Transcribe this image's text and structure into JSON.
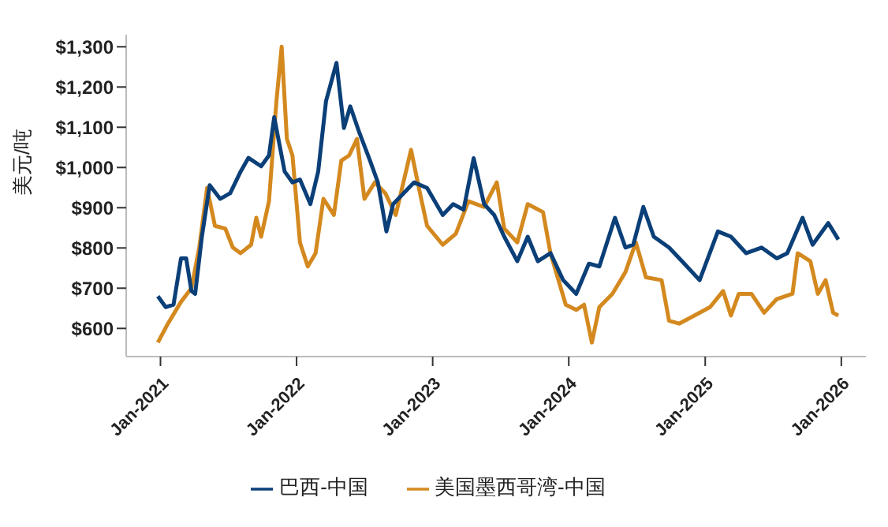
{
  "chart_data": {
    "type": "line",
    "ylabel": "美元/吨",
    "legend": "bottom",
    "grid": false,
    "marker": "none",
    "line_style": "solid",
    "xlim": [
      "2020-10-01",
      "2026-03-08"
    ],
    "xticks": [
      {
        "value": "2021-01-01",
        "label": "Jan-2021"
      },
      {
        "value": "2022-01-01",
        "label": "Jan-2022"
      },
      {
        "value": "2023-01-01",
        "label": "Jan-2023"
      },
      {
        "value": "2024-01-01",
        "label": "Jan-2024"
      },
      {
        "value": "2025-01-01",
        "label": "Jan-2025"
      },
      {
        "value": "2026-01-01",
        "label": "Jan-2026"
      }
    ],
    "ylim": [
      530,
      1330
    ],
    "yticks": [
      {
        "value": 600,
        "label": "$600"
      },
      {
        "value": 700,
        "label": "$700"
      },
      {
        "value": 800,
        "label": "$800"
      },
      {
        "value": 900,
        "label": "$900"
      },
      {
        "value": 1000,
        "label": "$1,000"
      },
      {
        "value": 1100,
        "label": "$1,100"
      },
      {
        "value": 1200,
        "label": "$1,200"
      },
      {
        "value": 1300,
        "label": "$1,300"
      }
    ],
    "series": [
      {
        "name": "美国墨西哥湾-中国",
        "color": "#d4891f",
        "x": [
          "2020-12-25",
          "2021-01-21",
          "2021-02-25",
          "2021-03-25",
          "2021-04-15",
          "2021-05-06",
          "2021-05-27",
          "2021-06-24",
          "2021-07-14",
          "2021-08-04",
          "2021-09-01",
          "2021-09-15",
          "2021-09-28",
          "2021-10-19",
          "2021-11-08",
          "2021-11-22",
          "2021-12-06",
          "2021-12-21",
          "2022-01-10",
          "2022-01-31",
          "2022-02-21",
          "2022-03-14",
          "2022-04-11",
          "2022-05-01",
          "2022-05-22",
          "2022-06-12",
          "2022-07-02",
          "2022-07-30",
          "2022-08-27",
          "2022-09-24",
          "2022-11-04",
          "2022-11-25",
          "2022-12-17",
          "2023-01-28",
          "2023-03-04",
          "2023-04-07",
          "2023-05-19",
          "2023-06-22",
          "2023-07-12",
          "2023-08-16",
          "2023-09-13",
          "2023-10-24",
          "2023-11-13",
          "2023-12-24",
          "2024-01-21",
          "2024-02-11",
          "2024-03-03",
          "2024-03-23",
          "2024-04-27",
          "2024-06-01",
          "2024-06-29",
          "2024-07-26",
          "2024-09-06",
          "2024-09-26",
          "2024-10-23",
          "2024-12-03",
          "2025-01-14",
          "2025-02-18",
          "2025-03-11",
          "2025-04-01",
          "2025-05-05",
          "2025-06-08",
          "2025-07-12",
          "2025-08-23",
          "2025-09-06",
          "2025-10-10",
          "2025-10-30",
          "2025-11-20",
          "2025-12-10",
          "2025-12-24"
        ],
        "values": [
          565,
          612,
          666,
          700,
          801,
          949,
          855,
          848,
          801,
          787,
          808,
          875,
          828,
          916,
          1165,
          1300,
          1071,
          1030,
          814,
          754,
          787,
          922,
          882,
          1017,
          1030,
          1071,
          922,
          963,
          936,
          882,
          1044,
          949,
          855,
          808,
          835,
          916,
          902,
          963,
          848,
          814,
          909,
          889,
          787,
          659,
          646,
          659,
          565,
          653,
          686,
          740,
          814,
          727,
          720,
          619,
          612,
          632,
          653,
          693,
          632,
          686,
          686,
          639,
          673,
          686,
          787,
          767,
          686,
          720,
          639,
          632
        ]
      },
      {
        "name": "巴西-中国",
        "color": "#0b3f78",
        "x": [
          "2020-12-25",
          "2021-01-15",
          "2021-02-05",
          "2021-02-25",
          "2021-03-11",
          "2021-03-25",
          "2021-04-04",
          "2021-04-22",
          "2021-05-13",
          "2021-06-10",
          "2021-07-07",
          "2021-08-04",
          "2021-08-25",
          "2021-09-28",
          "2021-10-19",
          "2021-11-02",
          "2021-11-30",
          "2021-12-21",
          "2022-01-10",
          "2022-02-07",
          "2022-02-28",
          "2022-03-21",
          "2022-04-18",
          "2022-05-08",
          "2022-05-25",
          "2022-06-19",
          "2022-07-17",
          "2022-08-07",
          "2022-08-30",
          "2022-09-17",
          "2022-10-15",
          "2022-11-12",
          "2022-12-17",
          "2023-01-28",
          "2023-02-25",
          "2023-03-25",
          "2023-04-21",
          "2023-05-19",
          "2023-06-15",
          "2023-07-12",
          "2023-08-16",
          "2023-09-13",
          "2023-10-10",
          "2023-11-13",
          "2023-12-17",
          "2024-01-21",
          "2024-02-24",
          "2024-03-23",
          "2024-05-04",
          "2024-06-01",
          "2024-06-22",
          "2024-07-19",
          "2024-08-16",
          "2024-09-26",
          "2024-11-06",
          "2024-12-17",
          "2025-02-04",
          "2025-03-11",
          "2025-04-21",
          "2025-06-01",
          "2025-07-12",
          "2025-08-09",
          "2025-09-19",
          "2025-10-16",
          "2025-11-27",
          "2025-12-24"
        ],
        "values": [
          680,
          653,
          659,
          774,
          774,
          693,
          686,
          828,
          956,
          922,
          936,
          990,
          1024,
          1003,
          1030,
          1125,
          990,
          963,
          970,
          909,
          990,
          1165,
          1260,
          1098,
          1152,
          1085,
          1017,
          963,
          841,
          909,
          936,
          963,
          949,
          882,
          909,
          895,
          1023,
          909,
          882,
          828,
          767,
          828,
          767,
          787,
          720,
          686,
          761,
          754,
          875,
          801,
          808,
          902,
          828,
          801,
          761,
          720,
          841,
          828,
          787,
          801,
          774,
          787,
          875,
          808,
          862,
          821
        ]
      }
    ]
  }
}
